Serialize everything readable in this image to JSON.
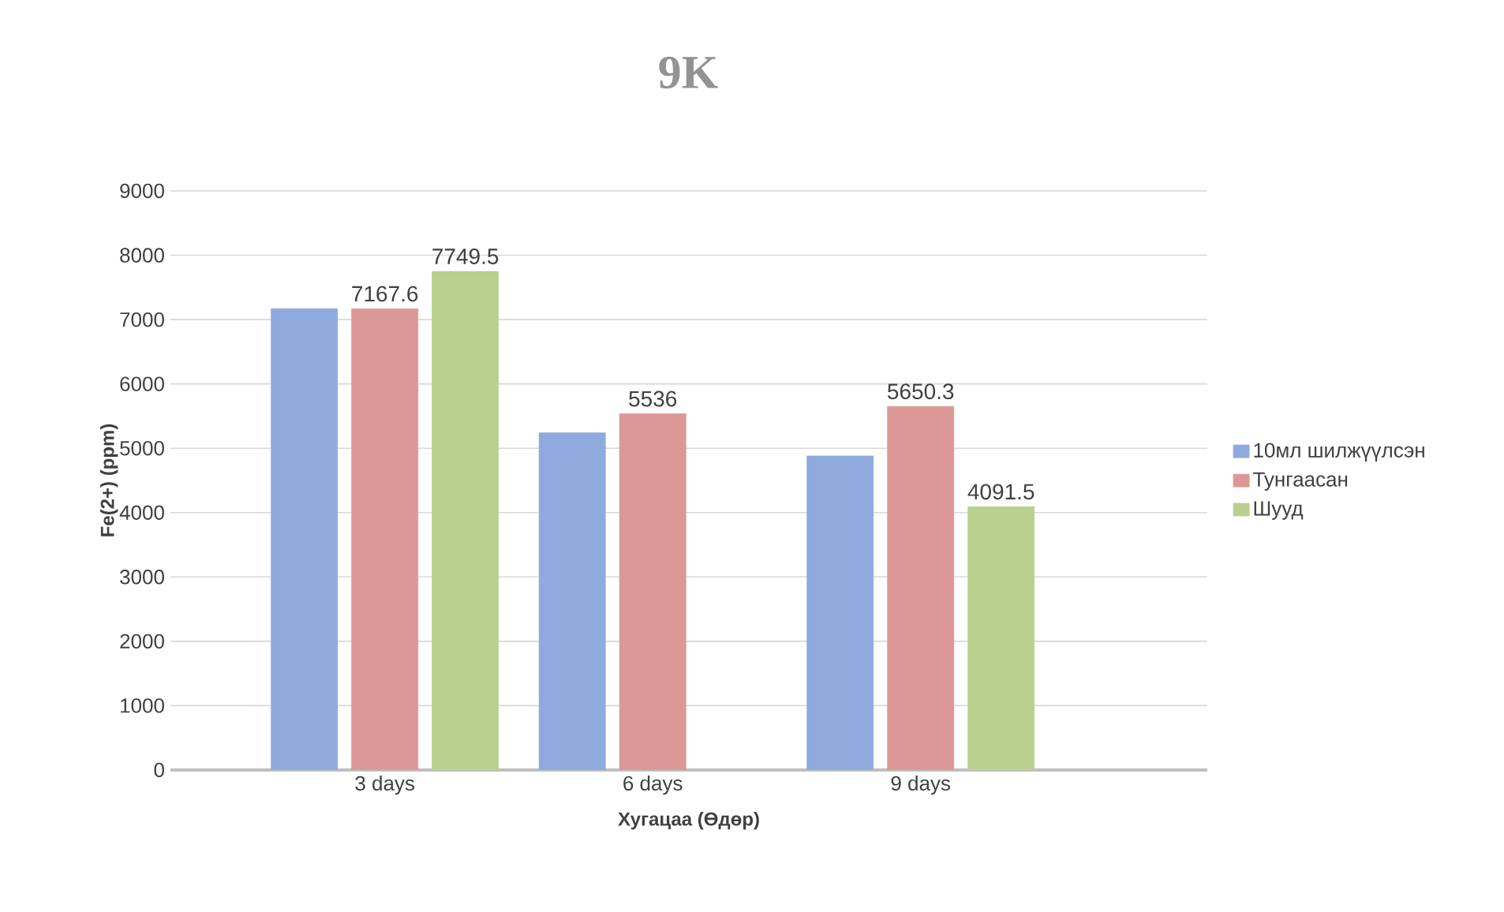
{
  "chart_data": {
    "type": "bar",
    "title": "9K",
    "xlabel": "Хугацаа (Өдөр)",
    "ylabel": "Fe(2+) (ppm)",
    "categories": [
      "3 days",
      "6 days",
      "9 days"
    ],
    "series": [
      {
        "name": "10мл шилжүүлсэн",
        "color": "#8faadc",
        "values": [
          7170,
          5240,
          4880
        ]
      },
      {
        "name": "Тунгаасан",
        "color": "#dc9896",
        "values": [
          7167.6,
          5536,
          5650.3
        ],
        "value_labels": [
          "7167.6",
          "5536",
          "5650.3"
        ]
      },
      {
        "name": "Шууд",
        "color": "#b9d08e",
        "values": [
          7749.5,
          null,
          4091.5
        ],
        "value_labels": [
          "7749.5",
          null,
          "4091.5"
        ]
      }
    ],
    "ylim": [
      0,
      9000
    ],
    "yticks": [
      0,
      1000,
      2000,
      3000,
      4000,
      5000,
      6000,
      7000,
      8000,
      9000
    ],
    "grid": "y",
    "legend": "right"
  }
}
